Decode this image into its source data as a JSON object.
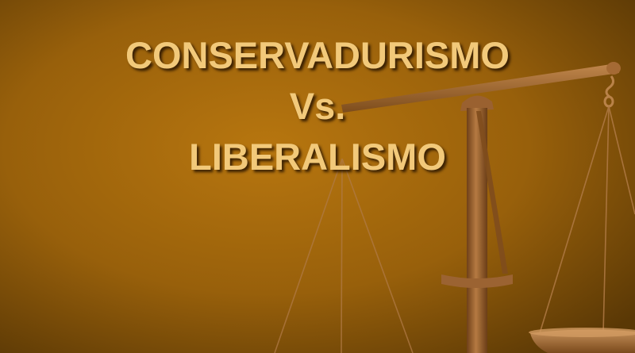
{
  "slide": {
    "title_lines": [
      "CONSERVADURISMO",
      "Vs.",
      "LIBERALISMO"
    ]
  },
  "colors": {
    "background_center": "#b5740f",
    "background_edge": "#5e3a06",
    "title_text": "#f2c97a",
    "scale_wood": "#8a5524",
    "scale_highlight": "#c98a4b",
    "scale_string": "#b07a45"
  },
  "icons": {
    "scale": "balance-scale-icon"
  }
}
